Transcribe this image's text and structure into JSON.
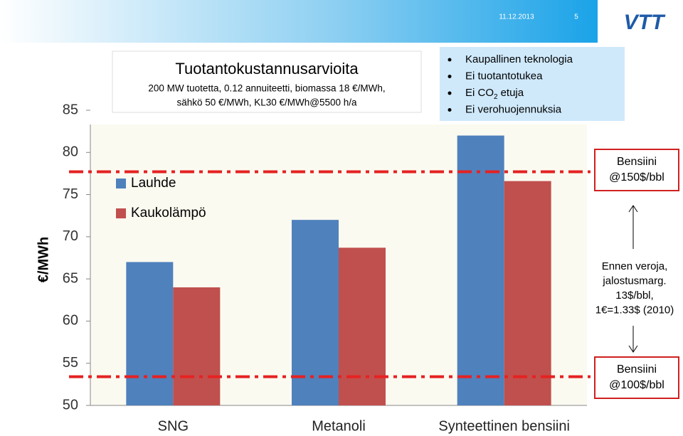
{
  "header": {
    "date": "11.12.2013",
    "page": "5",
    "logo": "VTT"
  },
  "title_box": {
    "title": "Tuotantokustannusarvioita",
    "lines": [
      "200 MW tuotetta, 0.12 annuiteetti, biomassa 18 €/MWh,",
      "sähkö 50 €/MWh, KL30 €/MWh@5500 h/a"
    ]
  },
  "bullets": [
    {
      "text": "Kaupallinen teknologia"
    },
    {
      "text": "Ei tuotantotukea"
    },
    {
      "text": "Ei CO",
      "sub": "2",
      "after": "etuja"
    },
    {
      "text": "Ei verohuojennuksia"
    }
  ],
  "note": {
    "lines": [
      "Ennen veroja,",
      "jalostusmarg.",
      "13$/bbl,",
      "1€=1.33$ (2010)"
    ]
  },
  "chart_data": {
    "type": "bar",
    "ylabel": "€/MWh",
    "categories": [
      "SNG",
      "Metanoli",
      "Synteettinen bensiini"
    ],
    "series": [
      {
        "name": "Lauhde",
        "color": "#4f81bd",
        "values": [
          67,
          72,
          82
        ]
      },
      {
        "name": "Kaukolämpö",
        "color": "#c0504d",
        "values": [
          64,
          68.7,
          76.6
        ]
      }
    ],
    "ylim": [
      50,
      85
    ],
    "yticks": [
      50,
      55,
      60,
      65,
      70,
      75,
      80,
      85
    ],
    "reference_lines": [
      {
        "value": 77.7,
        "color": "#e52222",
        "label": [
          "Bensiini",
          "@150$/bbl"
        ]
      },
      {
        "value": 53.4,
        "color": "#e52222",
        "label": [
          "Bensiini",
          "@100$/bbl"
        ]
      }
    ]
  }
}
